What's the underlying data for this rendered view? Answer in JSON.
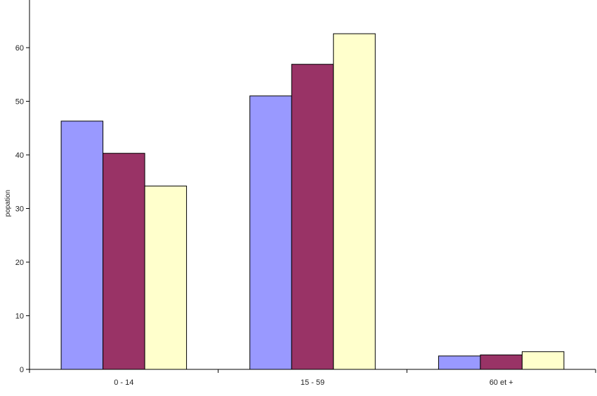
{
  "chart_data": {
    "type": "bar",
    "title": "",
    "xlabel": "",
    "ylabel": "popation",
    "ylim": [
      0,
      70
    ],
    "yticks": [
      0,
      10,
      20,
      30,
      40,
      50,
      60
    ],
    "categories": [
      "0 - 14",
      "15 - 59",
      "60 et +"
    ],
    "series": [
      {
        "color": "#9999ff",
        "values": [
          46.3,
          51.0,
          2.5
        ]
      },
      {
        "color": "#993366",
        "values": [
          40.3,
          56.9,
          2.7
        ]
      },
      {
        "color": "#ffffcc",
        "values": [
          34.2,
          62.6,
          3.3
        ]
      }
    ],
    "grid": false,
    "legend": "none"
  }
}
